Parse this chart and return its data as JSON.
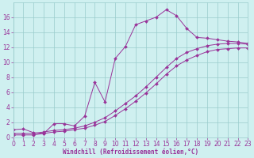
{
  "xlabel": "Windchill (Refroidissement éolien,°C)",
  "bg_color": "#cff0f0",
  "grid_color": "#99cccc",
  "line_color": "#993399",
  "xmin": 0,
  "xmax": 23,
  "ymin": 0,
  "ymax": 18,
  "yticks": [
    0,
    2,
    4,
    6,
    8,
    10,
    12,
    14,
    16
  ],
  "xticks": [
    0,
    1,
    2,
    3,
    4,
    5,
    6,
    7,
    8,
    9,
    10,
    11,
    12,
    13,
    14,
    15,
    16,
    17,
    18,
    19,
    20,
    21,
    22,
    23
  ],
  "line1_x": [
    0,
    1,
    2,
    3,
    4,
    5,
    6,
    7,
    8,
    9,
    10,
    11,
    12,
    13,
    14,
    15,
    16,
    17,
    18,
    19,
    20,
    21,
    22,
    23
  ],
  "line1_y": [
    1.0,
    1.1,
    0.6,
    0.5,
    1.8,
    1.8,
    1.5,
    2.8,
    7.3,
    4.7,
    10.5,
    12.1,
    15.0,
    15.5,
    16.0,
    17.0,
    16.2,
    14.5,
    13.3,
    13.2,
    13.0,
    12.8,
    12.7,
    12.5
  ],
  "line2_x": [
    0,
    1,
    2,
    3,
    4,
    5,
    6,
    7,
    8,
    9,
    10,
    11,
    12,
    13,
    14,
    15,
    16,
    17,
    18,
    19,
    20,
    21,
    22,
    23
  ],
  "line2_y": [
    0.5,
    0.5,
    0.5,
    0.7,
    0.9,
    1.0,
    1.2,
    1.5,
    2.0,
    2.6,
    3.5,
    4.5,
    5.5,
    6.7,
    8.0,
    9.3,
    10.5,
    11.3,
    11.8,
    12.2,
    12.4,
    12.5,
    12.5,
    12.4
  ],
  "line3_x": [
    0,
    1,
    2,
    3,
    4,
    5,
    6,
    7,
    8,
    9,
    10,
    11,
    12,
    13,
    14,
    15,
    16,
    17,
    18,
    19,
    20,
    21,
    22,
    23
  ],
  "line3_y": [
    0.3,
    0.3,
    0.3,
    0.5,
    0.7,
    0.8,
    1.0,
    1.2,
    1.6,
    2.1,
    2.9,
    3.8,
    4.8,
    5.9,
    7.1,
    8.4,
    9.5,
    10.3,
    10.9,
    11.4,
    11.7,
    11.8,
    11.9,
    11.9
  ],
  "tick_fontsize": 5.5,
  "xlabel_fontsize": 5.5
}
